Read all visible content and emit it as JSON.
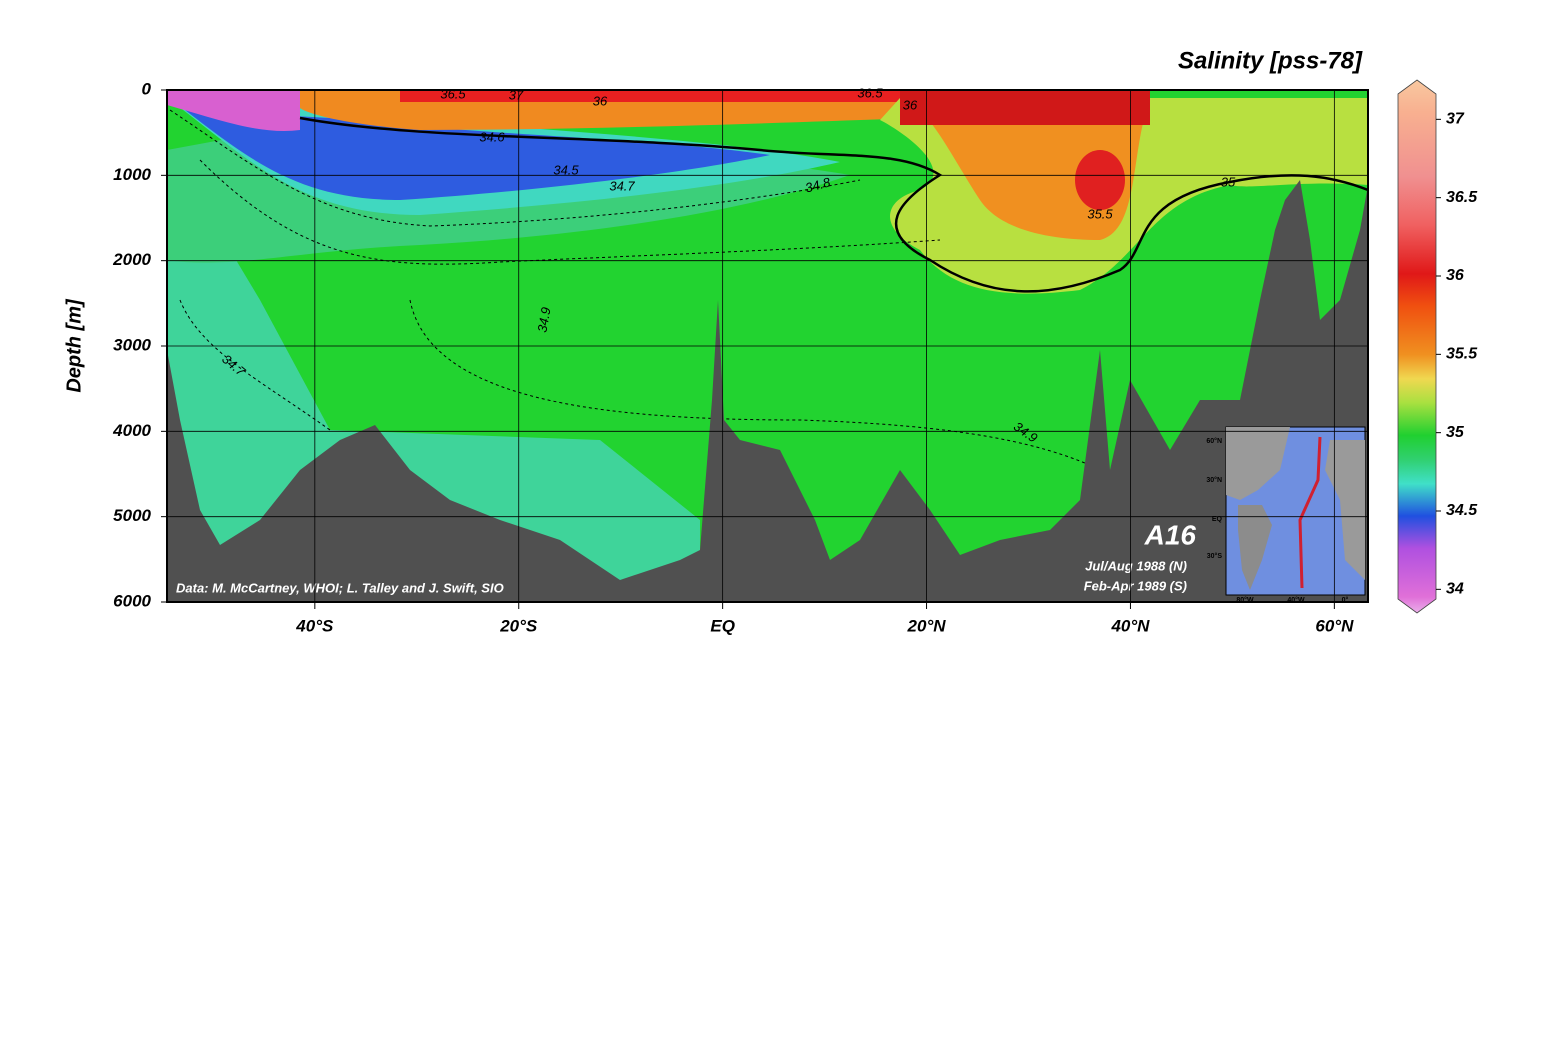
{
  "chart_data": {
    "type": "section",
    "title": "Salinity [pss-78]",
    "y_label": "Depth [m]",
    "xlim": [
      -54.5,
      63.3
    ],
    "xticks": [
      {
        "value": -40,
        "label": "40°S"
      },
      {
        "value": -20,
        "label": "20°S"
      },
      {
        "value": 0,
        "label": "EQ"
      },
      {
        "value": 20,
        "label": "20°N"
      },
      {
        "value": 40,
        "label": "40°N"
      },
      {
        "value": 60,
        "label": "60°N"
      }
    ],
    "ylim": [
      0,
      6000
    ],
    "y_inverted": true,
    "yticks": [
      0,
      1000,
      2000,
      3000,
      4000,
      5000,
      6000
    ],
    "grid": true,
    "colorbar": {
      "lim": [
        33.9,
        37.2
      ],
      "ticks": [
        34,
        34.5,
        35,
        35.5,
        36,
        36.5,
        37
      ],
      "colorscale": [
        [
          33.9,
          "#eab0ea"
        ],
        [
          34,
          "#e070d8"
        ],
        [
          34.3,
          "#b050e0"
        ],
        [
          34.5,
          "#2050e0"
        ],
        [
          34.7,
          "#40e0c8"
        ],
        [
          34.85,
          "#30d070"
        ],
        [
          35,
          "#20d030"
        ],
        [
          35.2,
          "#a8e040"
        ],
        [
          35.35,
          "#f0d850"
        ],
        [
          35.5,
          "#f09020"
        ],
        [
          35.8,
          "#f05010"
        ],
        [
          36,
          "#e01818"
        ],
        [
          36.3,
          "#f06060"
        ],
        [
          36.6,
          "#f09090"
        ],
        [
          37,
          "#f8b090"
        ],
        [
          37.2,
          "#f8c8a0"
        ]
      ]
    },
    "contour_labels": [
      36.5,
      37,
      36,
      34.6,
      34.5,
      34.7,
      34.8,
      35,
      35.5,
      34.9,
      34.9,
      34.7,
      36.5,
      36
    ],
    "section_name": "A16",
    "dates": [
      "Jul/Aug 1988 (N)",
      "Feb-Apr 1989 (S)"
    ],
    "credit": "Data: M. McCartney, WHOI; L. Talley and J. Swift, SIO",
    "inset": {
      "lat_labels": [
        "60°N",
        "30°N",
        "EQ",
        "30°S"
      ],
      "lon_labels": [
        "80°W",
        "40°W",
        "0°"
      ]
    }
  }
}
